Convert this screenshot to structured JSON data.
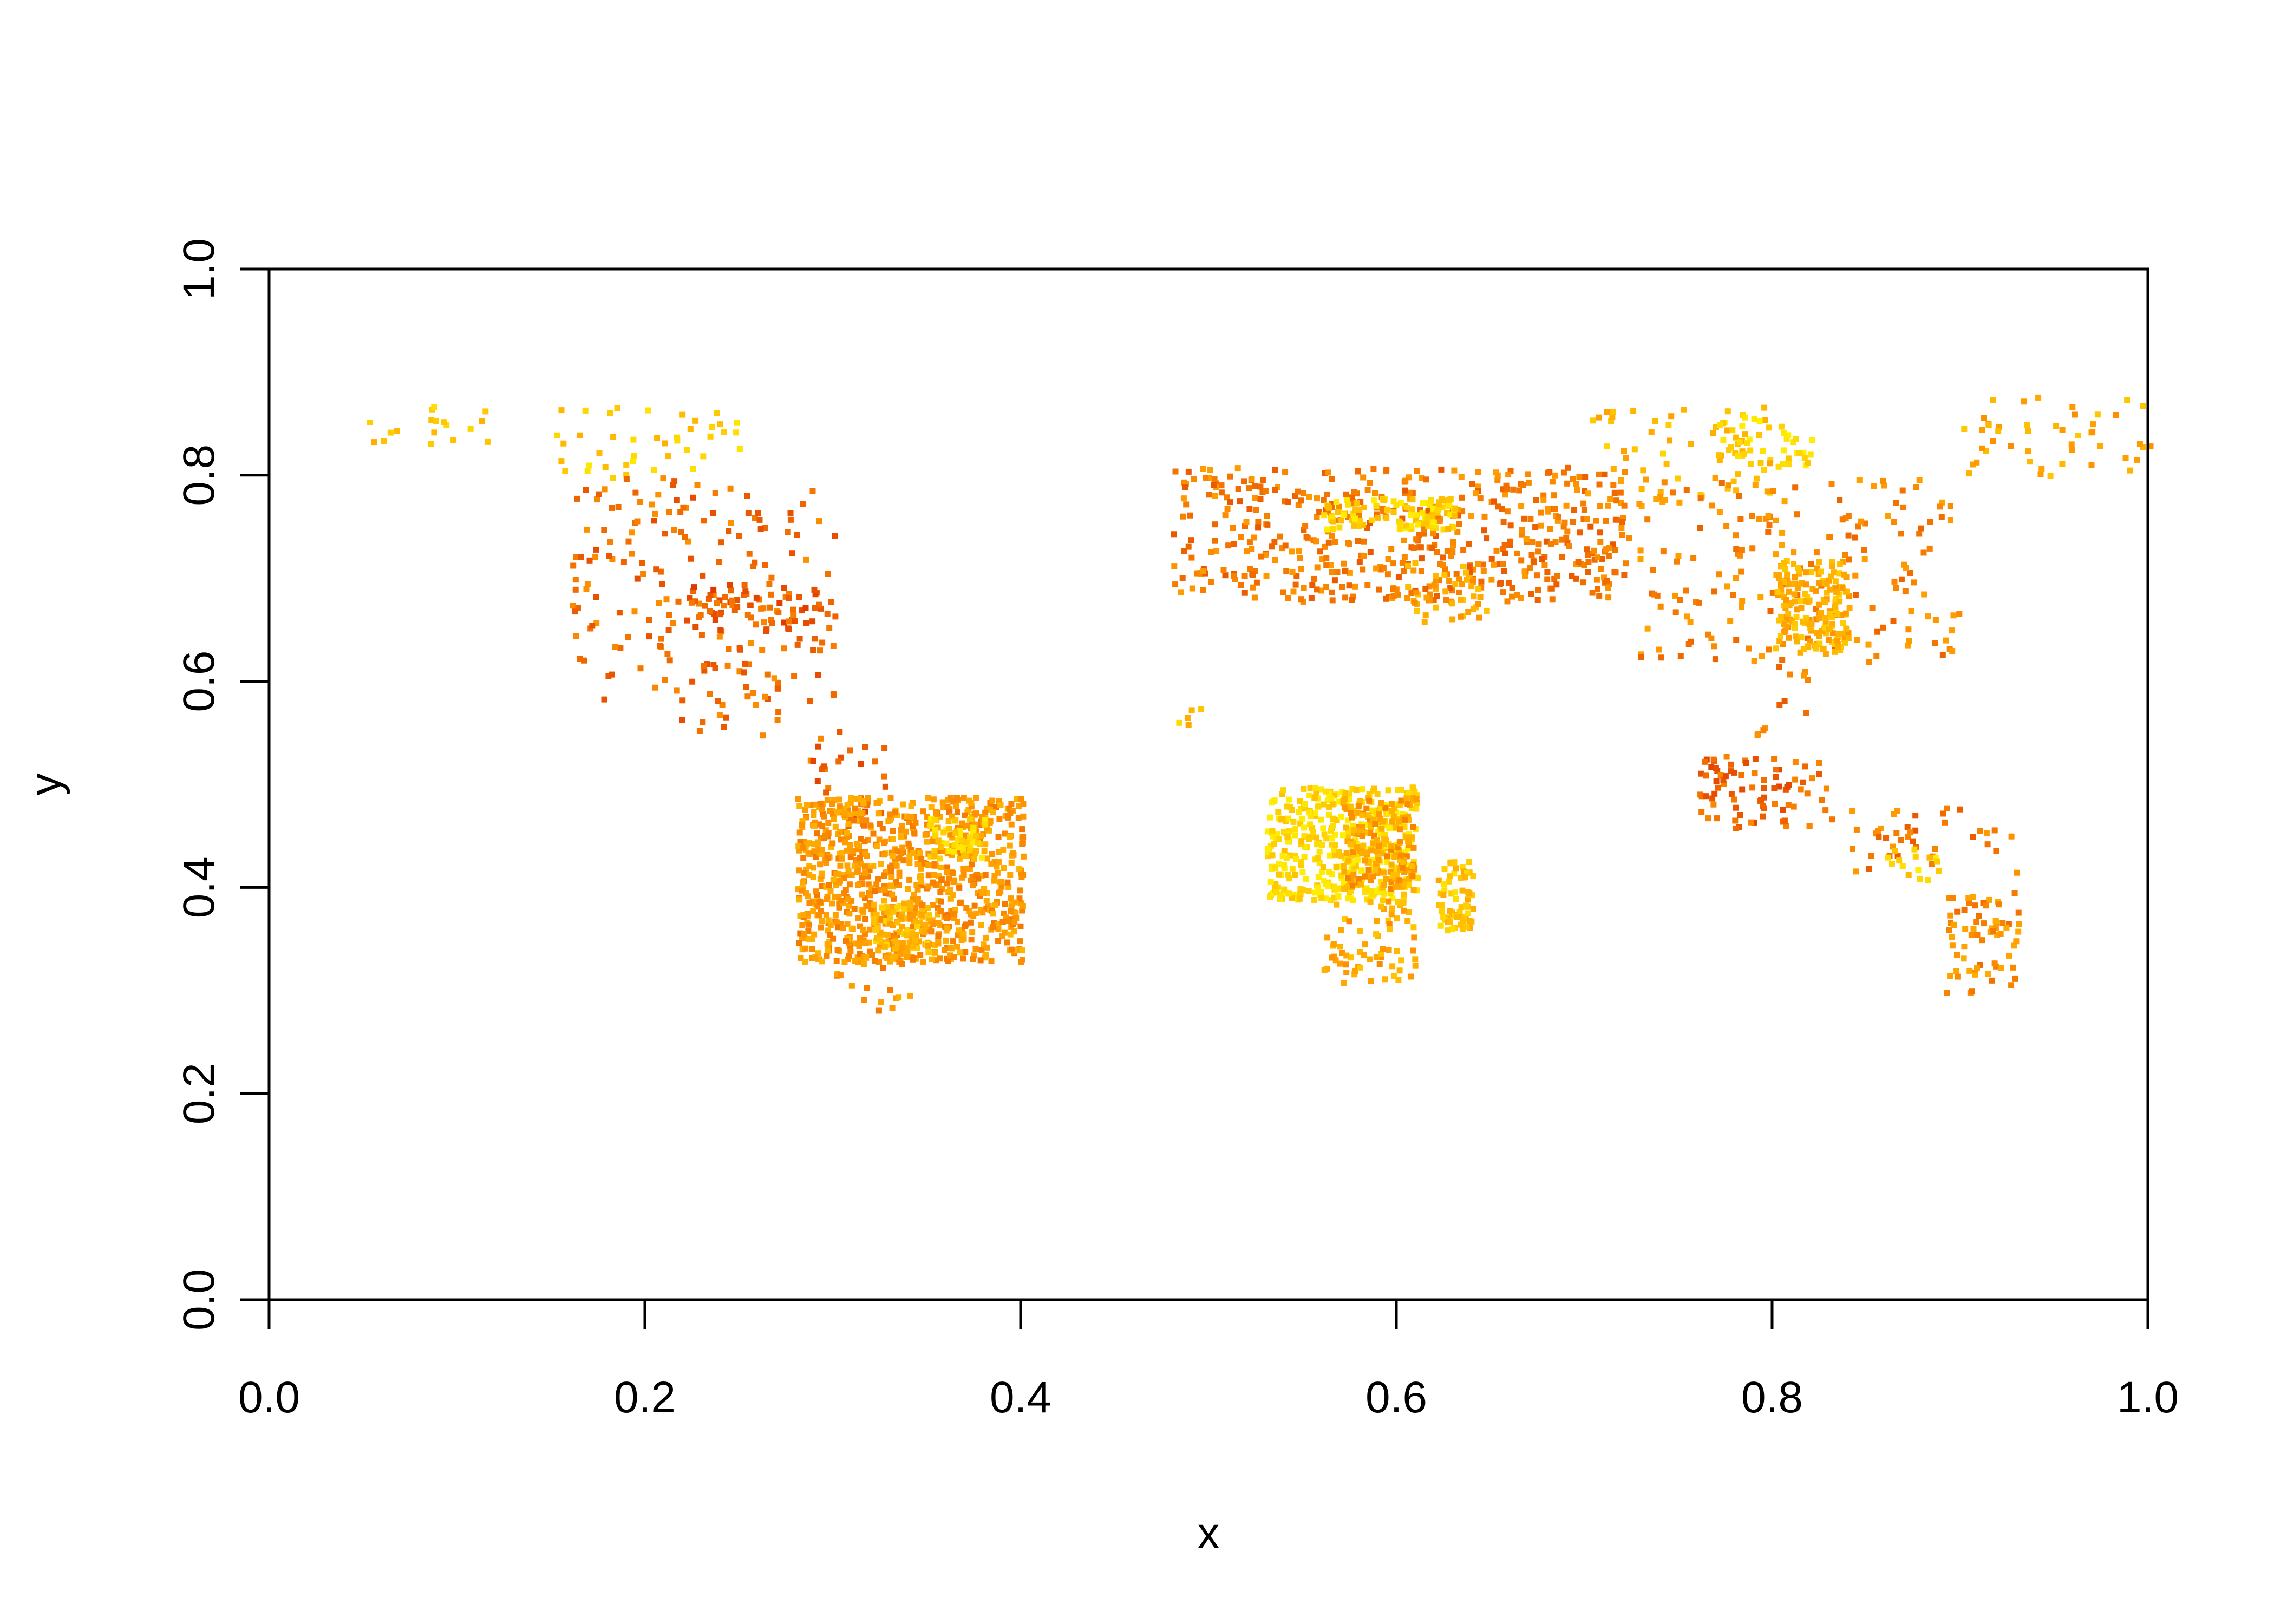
{
  "chart_data": {
    "type": "scatter",
    "title": "",
    "xlabel": "x",
    "ylabel": "y",
    "xlim": [
      0,
      1
    ],
    "ylim": [
      0,
      1
    ],
    "x_ticks": [
      0.0,
      0.2,
      0.4,
      0.6,
      0.8,
      1.0
    ],
    "y_ticks": [
      0.0,
      0.2,
      0.4,
      0.6,
      0.8,
      1.0
    ],
    "x_tick_labels": [
      "0.0",
      "0.2",
      "0.4",
      "0.6",
      "0.8",
      "1.0"
    ],
    "y_tick_labels": [
      "0.0",
      "0.2",
      "0.4",
      "0.6",
      "0.8",
      "1.0"
    ],
    "grid": false,
    "legend": "none",
    "colors": {
      "low": "#dd3300",
      "mid": "#ff9900",
      "high": "#ffee00"
    },
    "clusters": [
      {
        "x_range": [
          0.045,
          0.12
        ],
        "y_range": [
          0.83,
          0.87
        ],
        "density": "sparse",
        "level": 0.75
      },
      {
        "x_range": [
          0.15,
          0.25
        ],
        "y_range": [
          0.8,
          0.87
        ],
        "density": "sparse",
        "level": 0.8
      },
      {
        "x_range": [
          0.16,
          0.3
        ],
        "y_range": [
          0.58,
          0.8
        ],
        "density": "sparse",
        "level": 0.3
      },
      {
        "x_range": [
          0.22,
          0.29
        ],
        "y_range": [
          0.65,
          0.7
        ],
        "density": "medium",
        "level": 0.2
      },
      {
        "x_range": [
          0.21,
          0.27
        ],
        "y_range": [
          0.55,
          0.62
        ],
        "density": "sparse",
        "level": 0.3
      },
      {
        "x_range": [
          0.28,
          0.33
        ],
        "y_range": [
          0.46,
          0.56
        ],
        "density": "sparse",
        "level": 0.25
      },
      {
        "x_range": [
          0.28,
          0.4
        ],
        "y_range": [
          0.33,
          0.49
        ],
        "density": "dense",
        "level": 0.5
      },
      {
        "x_range": [
          0.35,
          0.38
        ],
        "y_range": [
          0.43,
          0.47
        ],
        "density": "dense",
        "level": 0.85
      },
      {
        "x_range": [
          0.32,
          0.35
        ],
        "y_range": [
          0.34,
          0.39
        ],
        "density": "dense",
        "level": 0.7
      },
      {
        "x_range": [
          0.3,
          0.34
        ],
        "y_range": [
          0.28,
          0.35
        ],
        "density": "sparse",
        "level": 0.5
      },
      {
        "x_range": [
          0.48,
          0.72
        ],
        "y_range": [
          0.68,
          0.81
        ],
        "density": "medium",
        "level": 0.35
      },
      {
        "x_range": [
          0.56,
          0.63
        ],
        "y_range": [
          0.75,
          0.78
        ],
        "density": "dense",
        "level": 0.85
      },
      {
        "x_range": [
          0.6,
          0.65
        ],
        "y_range": [
          0.66,
          0.72
        ],
        "density": "medium",
        "level": 0.6
      },
      {
        "x_range": [
          0.7,
          0.8
        ],
        "y_range": [
          0.78,
          0.87
        ],
        "density": "sparse",
        "level": 0.7
      },
      {
        "x_range": [
          0.77,
          0.82
        ],
        "y_range": [
          0.81,
          0.86
        ],
        "density": "medium",
        "level": 0.9
      },
      {
        "x_range": [
          0.72,
          0.9
        ],
        "y_range": [
          0.62,
          0.8
        ],
        "density": "sparse",
        "level": 0.4
      },
      {
        "x_range": [
          0.8,
          0.84
        ],
        "y_range": [
          0.63,
          0.72
        ],
        "density": "dense",
        "level": 0.65
      },
      {
        "x_range": [
          0.79,
          0.82
        ],
        "y_range": [
          0.55,
          0.62
        ],
        "density": "sparse",
        "level": 0.35
      },
      {
        "x_range": [
          0.46,
          0.5
        ],
        "y_range": [
          0.56,
          0.58
        ],
        "density": "sparse",
        "level": 0.75
      },
      {
        "x_range": [
          0.53,
          0.61
        ],
        "y_range": [
          0.39,
          0.5
        ],
        "density": "dense",
        "level": 0.9
      },
      {
        "x_range": [
          0.57,
          0.61
        ],
        "y_range": [
          0.4,
          0.49
        ],
        "density": "dense",
        "level": 0.55
      },
      {
        "x_range": [
          0.56,
          0.61
        ],
        "y_range": [
          0.31,
          0.39
        ],
        "density": "medium",
        "level": 0.6
      },
      {
        "x_range": [
          0.62,
          0.64
        ],
        "y_range": [
          0.36,
          0.43
        ],
        "density": "dense",
        "level": 0.75
      },
      {
        "x_range": [
          0.76,
          0.83
        ],
        "y_range": [
          0.46,
          0.53
        ],
        "density": "medium",
        "level": 0.25
      },
      {
        "x_range": [
          0.83,
          0.93
        ],
        "y_range": [
          0.41,
          0.48
        ],
        "density": "sparse",
        "level": 0.35
      },
      {
        "x_range": [
          0.86,
          0.89
        ],
        "y_range": [
          0.41,
          0.44
        ],
        "density": "medium",
        "level": 0.85
      },
      {
        "x_range": [
          0.89,
          0.93
        ],
        "y_range": [
          0.3,
          0.4
        ],
        "density": "medium",
        "level": 0.45
      },
      {
        "x_range": [
          0.9,
          1.0
        ],
        "y_range": [
          0.8,
          0.88
        ],
        "density": "sparse",
        "level": 0.6
      }
    ]
  }
}
